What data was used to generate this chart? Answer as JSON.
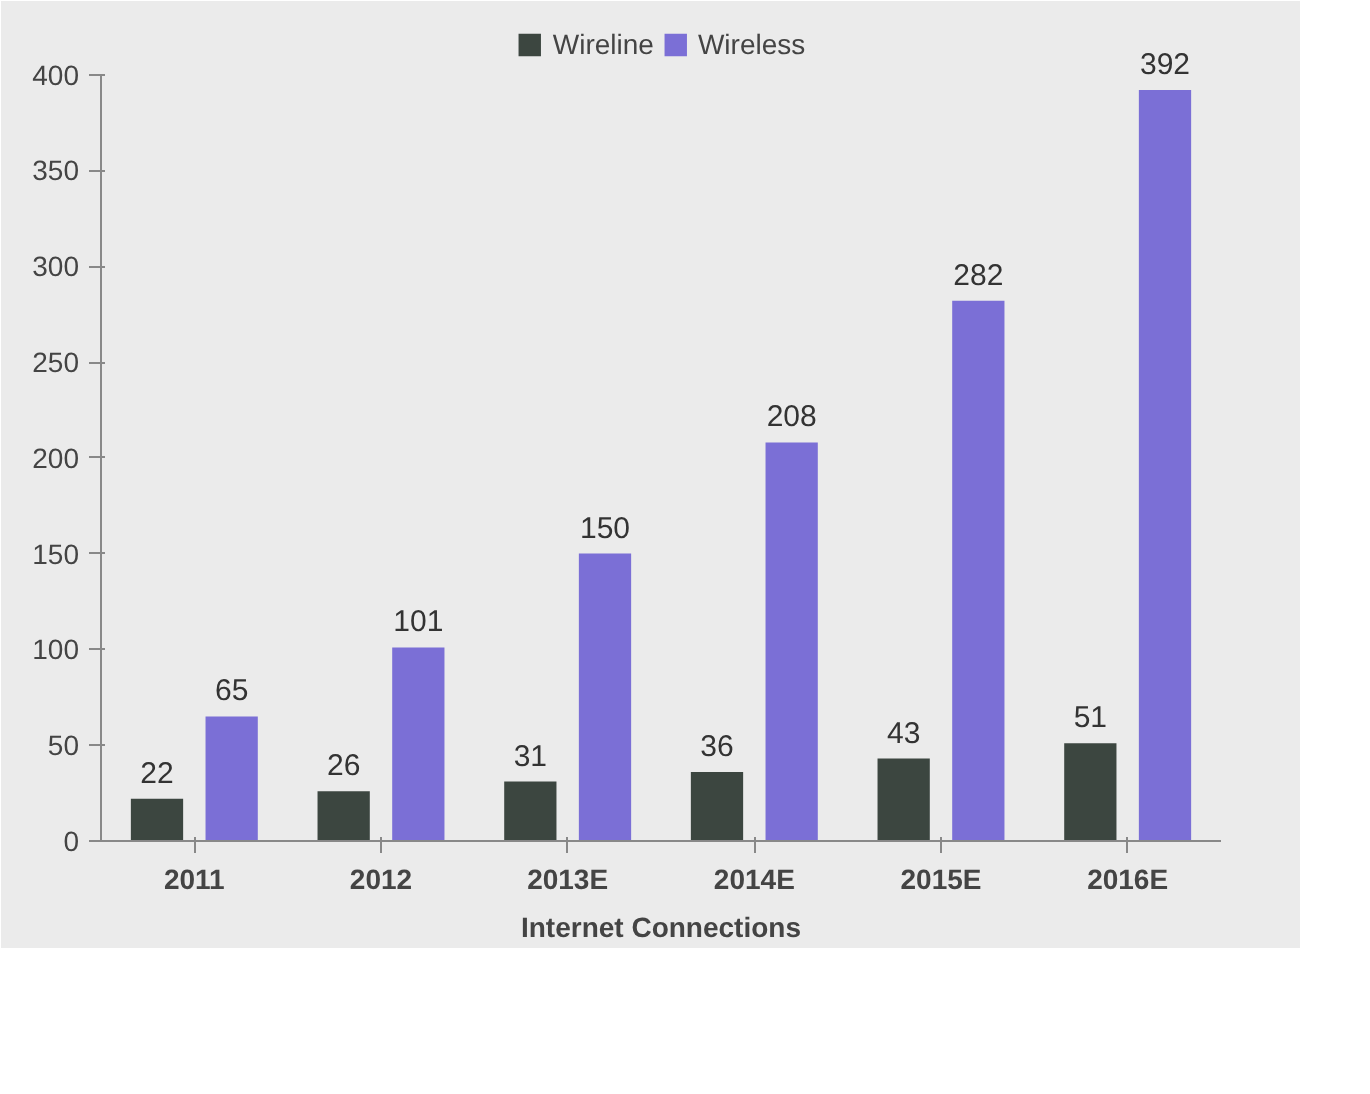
{
  "chart_data": {
    "type": "bar",
    "categories": [
      "2011",
      "2012",
      "2013E",
      "2014E",
      "2015E",
      "2016E"
    ],
    "xlabel": "Internet Connections",
    "series": [
      {
        "name": "Wireline",
        "color": "#3c4640",
        "values": [
          22,
          26,
          31,
          36,
          43,
          51
        ]
      },
      {
        "name": "Wireless",
        "color": "#7b6fd6",
        "values": [
          65,
          101,
          150,
          208,
          282,
          392
        ]
      }
    ],
    "ylim": [
      0,
      400
    ],
    "yticks": [
      0,
      50,
      100,
      150,
      200,
      250,
      300,
      350,
      400
    ],
    "data_labels": true,
    "legend": "top",
    "grid": false
  }
}
